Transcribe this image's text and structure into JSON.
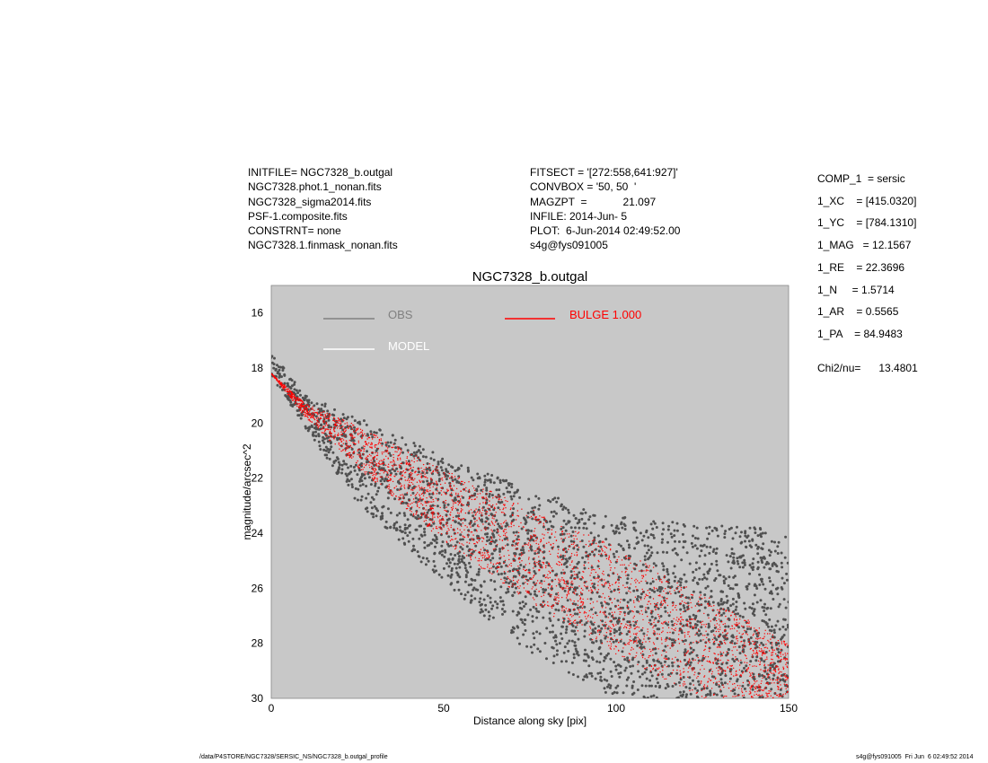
{
  "header_left": [
    "INITFILE= NGC7328_b.outgal",
    "NGC7328.phot.1_nonan.fits",
    "NGC7328_sigma2014.fits",
    "PSF-1.composite.fits",
    "CONSTRNT= none",
    "NGC7328.1.finmask_nonan.fits"
  ],
  "header_mid": [
    "FITSECT = '[272:558,641:927]'",
    "CONVBOX = '50, 50  '",
    "MAGZPT  =            21.097",
    "INFILE: 2014-Jun- 5",
    "PLOT:  6-Jun-2014 02:49:52.00",
    "s4g@fys091005"
  ],
  "params": [
    "COMP_1  = sersic",
    "1_XC    = [415.0320]",
    "1_YC    = [784.1310]",
    "1_MAG   = 12.1567",
    "1_RE    = 22.3696",
    "1_N     = 1.5714",
    "1_AR    = 0.5565",
    "1_PA    = 84.9483"
  ],
  "chi2": "Chi2/nu=      13.4801",
  "footer_left": "/data/P4STORE/NGC7328/SERSIC_NS/NGC7328_b.outgal_profile",
  "footer_right": "s4g@fys091005  Fri Jun  6 02:49:52 2014",
  "chart_data": {
    "type": "scatter",
    "title": "NGC7328_b.outgal",
    "xlabel": "Distance along sky [pix]",
    "ylabel": "magnitude/arcsec^2",
    "xlim": [
      0,
      150
    ],
    "ylim": [
      30,
      15
    ],
    "y_inverted": true,
    "xticks": [
      "0",
      "50",
      "100",
      "150"
    ],
    "yticks": [
      "16",
      "18",
      "20",
      "22",
      "24",
      "26",
      "28",
      "30"
    ],
    "grid": false,
    "background": "#c8c8c8",
    "legend": {
      "placement": "top",
      "entries": [
        {
          "label": "OBS",
          "color": "#808080"
        },
        {
          "label": "MODEL",
          "color": "#ffffff"
        },
        {
          "label": "BULGE  1.000",
          "color": "#ff0000"
        }
      ]
    },
    "series": [
      {
        "name": "OBS",
        "color": "#505050",
        "envelope": {
          "x": [
            0,
            10,
            25,
            50,
            75,
            100,
            125,
            150
          ],
          "bright": [
            17.4,
            19.0,
            19.8,
            21.2,
            22.4,
            23.4,
            23.7,
            23.8
          ],
          "faint": [
            18.3,
            20.2,
            22.9,
            25.8,
            28.4,
            30.0,
            30.0,
            30.0
          ]
        }
      },
      {
        "name": "BULGE  1.000",
        "color": "#ff0000",
        "envelope": {
          "x": [
            0,
            10,
            25,
            50,
            75,
            100,
            125,
            150
          ],
          "bright": [
            18.2,
            19.3,
            20.1,
            21.7,
            23.1,
            24.5,
            26.2,
            28.0
          ],
          "faint": [
            18.2,
            19.8,
            21.6,
            24.3,
            26.5,
            28.4,
            30.0,
            30.0
          ]
        }
      }
    ]
  }
}
